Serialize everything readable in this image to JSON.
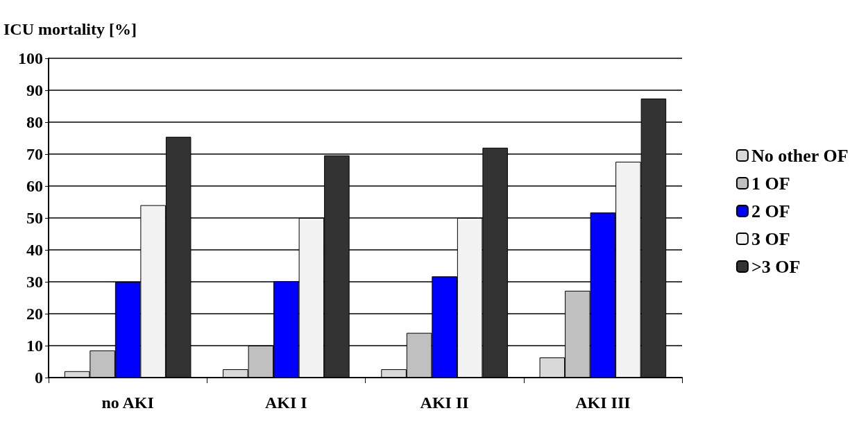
{
  "chart_data": {
    "type": "bar",
    "ylabel": "ICU mortality [%]",
    "categories": [
      "no AKI",
      "AKI I",
      "AKI II",
      "AKI III"
    ],
    "series": [
      {
        "name": "No other OF",
        "color": "#d9d9d9",
        "values": [
          2.0,
          2.6,
          2.6,
          6.3
        ]
      },
      {
        "name": "1 OF",
        "color": "#c0c0c0",
        "values": [
          8.5,
          10,
          14,
          27.2
        ]
      },
      {
        "name": "2 OF",
        "color": "#0000ff",
        "values": [
          30,
          30.2,
          31.7,
          51.7
        ]
      },
      {
        "name": "3 OF",
        "color": "#f2f2f2",
        "values": [
          54,
          50,
          50,
          67.6
        ]
      },
      {
        "name": ">3 OF",
        "color": "#333333",
        "values": [
          75.4,
          69.6,
          72,
          87.4
        ]
      }
    ],
    "ylim": [
      0,
      100
    ],
    "yticks": [
      0,
      10,
      20,
      30,
      40,
      50,
      60,
      70,
      80,
      90,
      100
    ],
    "grid": "y",
    "legend": "right"
  }
}
